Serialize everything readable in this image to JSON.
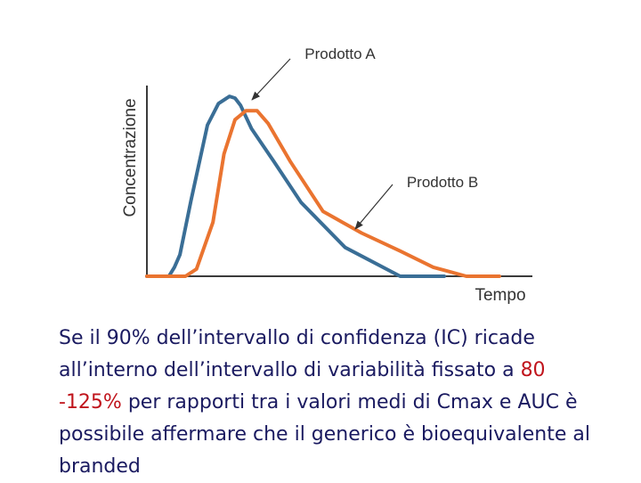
{
  "chart_data": {
    "type": "line",
    "title": "",
    "xlabel": "Tempo",
    "ylabel": "Concentrazione",
    "colors": {
      "Prodotto A": "#3a6e96",
      "Prodotto B": "#ea7430"
    },
    "series": [
      {
        "name": "Prodotto A",
        "x": [
          0,
          8,
          10,
          12,
          16,
          22,
          26,
          30,
          32,
          34,
          38,
          46,
          56,
          72,
          92,
          108
        ],
        "values": [
          0,
          0,
          0.05,
          0.12,
          0.42,
          0.84,
          0.96,
          1.0,
          0.99,
          0.95,
          0.82,
          0.64,
          0.41,
          0.16,
          0.0,
          0.0
        ]
      },
      {
        "name": "Prodotto B",
        "x": [
          0,
          14,
          18,
          24,
          28,
          32,
          36,
          40,
          44,
          52,
          64,
          78,
          92,
          104,
          116,
          128
        ],
        "values": [
          0,
          0,
          0.04,
          0.3,
          0.68,
          0.87,
          0.92,
          0.92,
          0.85,
          0.64,
          0.36,
          0.24,
          0.14,
          0.05,
          0.0,
          0.0
        ]
      }
    ],
    "xlim": [
      0,
      140
    ],
    "ylim": [
      0,
      1.05
    ],
    "grid": false,
    "annotations": [
      "Prodotto A",
      "Prodotto B"
    ]
  },
  "caption": {
    "part1": "Se il 90% dell’intervallo di confidenza (IC) ricade all’interno dell’intervallo di variabilità fissato a ",
    "red": "80 -125%",
    "part2": " per  rapporti tra i valori medi di Cmax e AUC è possibile affermare che il generico è bioequivalente al branded"
  }
}
